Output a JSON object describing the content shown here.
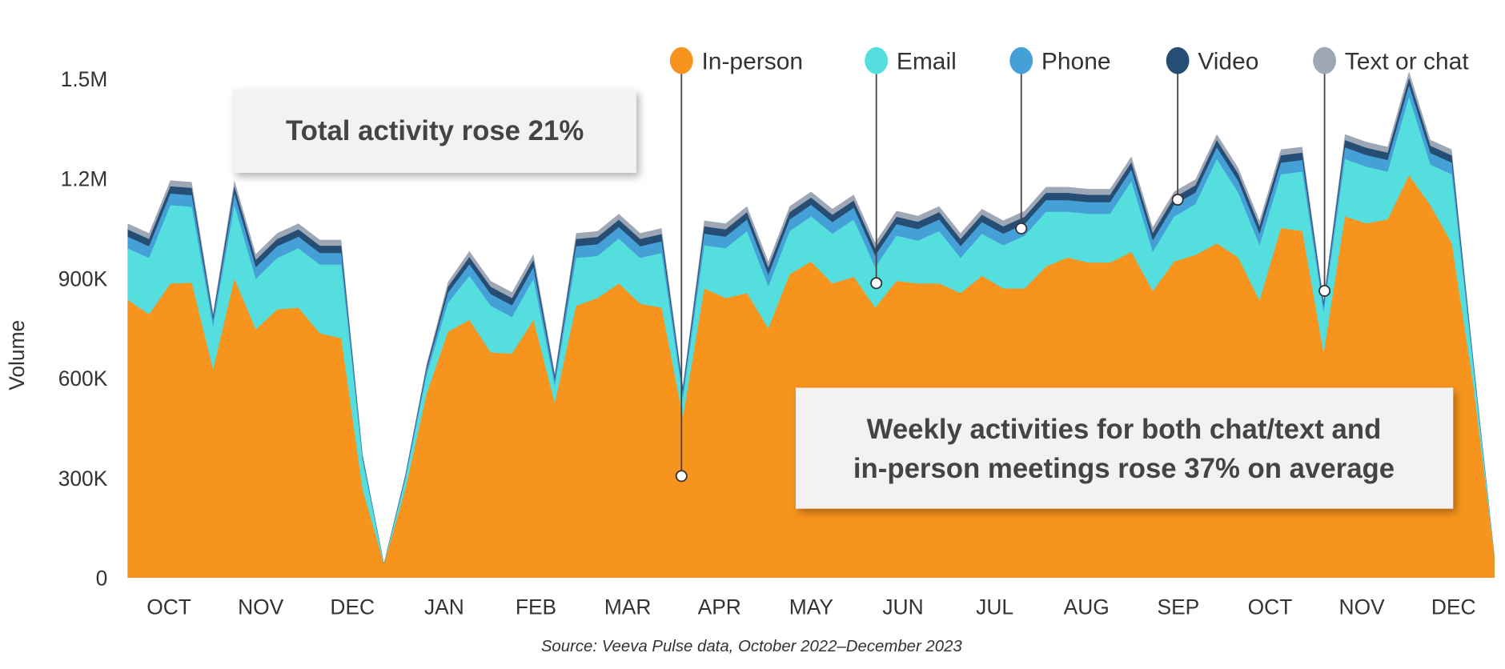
{
  "chart_data": {
    "type": "area",
    "stacked": true,
    "title": "",
    "ylabel": "Volume",
    "xlabel": "",
    "ylim": [
      0,
      1500000
    ],
    "yticks": [
      "0",
      "300K",
      "600K",
      "900K",
      "1.2M",
      "1.5M"
    ],
    "ytick_values": [
      0,
      300000,
      600000,
      900000,
      1200000,
      1500000
    ],
    "months": [
      "OCT",
      "NOV",
      "DEC",
      "JAN",
      "FEB",
      "MAR",
      "APR",
      "MAY",
      "JUN",
      "JUL",
      "AUG",
      "SEP",
      "OCT",
      "NOV",
      "DEC"
    ],
    "unit": "thousands",
    "legend_position": "top-right",
    "series": [
      {
        "name": "In-person",
        "color": "#F7941D",
        "values": [
          837,
          793,
          886,
          888,
          626,
          900,
          747,
          808,
          813,
          736,
          721,
          265,
          40,
          265,
          554,
          741,
          776,
          678,
          675,
          776,
          525,
          819,
          842,
          886,
          825,
          813,
          482,
          871,
          842,
          857,
          750,
          914,
          952,
          886,
          906,
          813,
          894,
          886,
          886,
          857,
          909,
          871,
          871,
          937,
          964,
          949,
          949,
          981,
          863,
          952,
          972,
          1007,
          964,
          834,
          1053,
          1044,
          675,
          1088,
          1067,
          1079,
          1212,
          1122,
          1007,
          583,
          63
        ]
      },
      {
        "name": "Email",
        "color": "#55DEDE",
        "values": [
          155,
          170,
          236,
          229,
          130,
          222,
          153,
          155,
          179,
          207,
          222,
          87,
          0,
          29,
          57,
          87,
          133,
          141,
          110,
          124,
          52,
          144,
          127,
          135,
          138,
          165,
          58,
          130,
          150,
          187,
          127,
          130,
          136,
          150,
          173,
          122,
          136,
          129,
          158,
          106,
          127,
          130,
          159,
          165,
          138,
          147,
          147,
          213,
          118,
          136,
          153,
          254,
          196,
          167,
          162,
          179,
          124,
          173,
          171,
          144,
          236,
          122,
          208,
          57,
          0
        ]
      },
      {
        "name": "Phone",
        "color": "#46A0D8",
        "values": [
          35,
          35,
          35,
          35,
          20,
          35,
          35,
          35,
          35,
          35,
          35,
          10,
          2,
          8,
          15,
          30,
          35,
          35,
          35,
          35,
          18,
          35,
          35,
          35,
          35,
          35,
          18,
          35,
          35,
          35,
          35,
          35,
          35,
          35,
          35,
          35,
          35,
          35,
          35,
          35,
          35,
          35,
          35,
          35,
          35,
          35,
          35,
          35,
          35,
          35,
          35,
          35,
          35,
          35,
          35,
          35,
          18,
          35,
          35,
          35,
          35,
          35,
          35,
          12,
          2
        ]
      },
      {
        "name": "Video",
        "color": "#264D73",
        "values": [
          22,
          22,
          22,
          22,
          12,
          22,
          22,
          22,
          22,
          22,
          22,
          6,
          1,
          5,
          10,
          18,
          22,
          22,
          22,
          22,
          12,
          22,
          22,
          22,
          22,
          22,
          12,
          22,
          22,
          22,
          22,
          22,
          22,
          22,
          22,
          22,
          22,
          22,
          22,
          22,
          22,
          22,
          22,
          22,
          22,
          22,
          22,
          22,
          22,
          22,
          22,
          22,
          22,
          22,
          22,
          22,
          12,
          22,
          22,
          22,
          22,
          22,
          22,
          8,
          1
        ]
      },
      {
        "name": "Text or chat",
        "color": "#9EA7B5",
        "values": [
          18,
          18,
          18,
          18,
          10,
          18,
          18,
          18,
          18,
          18,
          18,
          5,
          1,
          4,
          8,
          15,
          18,
          18,
          18,
          18,
          10,
          18,
          18,
          18,
          18,
          18,
          10,
          18,
          18,
          18,
          18,
          18,
          18,
          18,
          18,
          18,
          18,
          18,
          18,
          18,
          18,
          18,
          18,
          18,
          18,
          18,
          18,
          18,
          18,
          18,
          18,
          18,
          18,
          18,
          18,
          18,
          10,
          18,
          18,
          18,
          20,
          18,
          18,
          6,
          1
        ]
      }
    ],
    "annotations": {
      "total": "Total activity rose 21%",
      "weekly_line1": "Weekly activities for both chat/text and",
      "weekly_line2": "in-person meetings rose 37% on average"
    },
    "source": "Source: Veeva Pulse data, October 2022–December 2023"
  }
}
